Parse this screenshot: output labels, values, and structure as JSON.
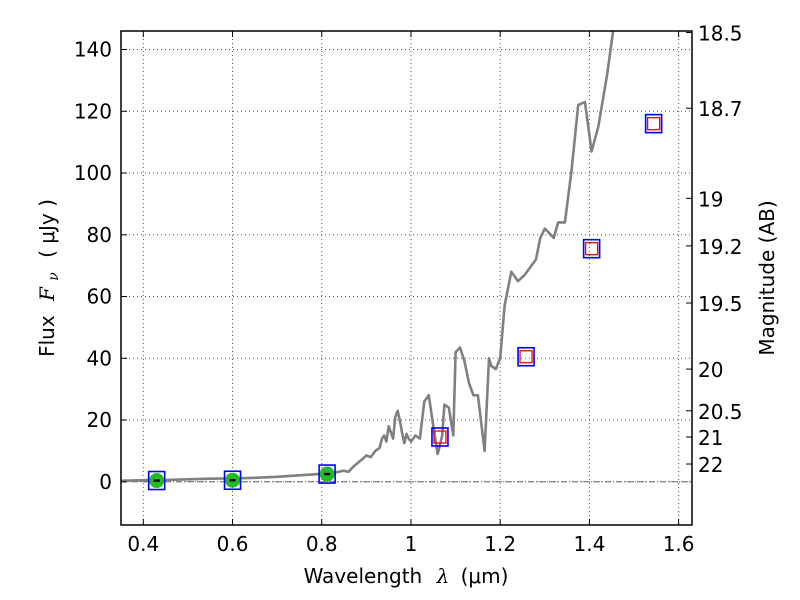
{
  "chart_data": {
    "type": "scatter",
    "xlabel_prefix": "Wavelength",
    "xlabel_symbol": "λ",
    "xlabel_unit": "(μm)",
    "ylabel_prefix": "Flux",
    "ylabel_symbol": "F",
    "ylabel_subscript": "ν",
    "ylabel_unit": "( μJy )",
    "y2label": "Magnitude (AB)",
    "xlim": [
      0.35,
      1.63
    ],
    "ylim": [
      -14,
      146
    ],
    "grid": true,
    "x_ticks": [
      0.4,
      0.6,
      0.8,
      1.0,
      1.2,
      1.4,
      1.6
    ],
    "x_tick_labels": [
      "0.4",
      "0.6",
      "0.8",
      "1",
      "1.2",
      "1.4",
      "1.6"
    ],
    "y_ticks": [
      0,
      20,
      40,
      60,
      80,
      100,
      120,
      140
    ],
    "y_tick_labels": [
      "0",
      "20",
      "40",
      "60",
      "80",
      "100",
      "120",
      "140"
    ],
    "mag_ticks": [
      {
        "label": "18.5",
        "flux": 145.5
      },
      {
        "label": "18.7",
        "flux": 121.0
      },
      {
        "label": "19",
        "flux": 91.8
      },
      {
        "label": "19.2",
        "flux": 76.4
      },
      {
        "label": "19.5",
        "flux": 57.9
      },
      {
        "label": "20",
        "flux": 36.5
      },
      {
        "label": "20.5",
        "flux": 23.0
      },
      {
        "label": "21",
        "flux": 14.5
      },
      {
        "label": "22",
        "flux": 5.75
      }
    ],
    "sed_model": {
      "name": "model spectrum",
      "color": "#808080",
      "points": [
        [
          0.35,
          0.3
        ],
        [
          0.4,
          0.5
        ],
        [
          0.45,
          0.6
        ],
        [
          0.5,
          0.8
        ],
        [
          0.55,
          1.0
        ],
        [
          0.6,
          1.1
        ],
        [
          0.65,
          1.3
        ],
        [
          0.7,
          1.6
        ],
        [
          0.75,
          2.1
        ],
        [
          0.78,
          2.4
        ],
        [
          0.8,
          2.6
        ],
        [
          0.83,
          3.0
        ],
        [
          0.85,
          3.6
        ],
        [
          0.86,
          3.2
        ],
        [
          0.87,
          4.8
        ],
        [
          0.88,
          6.0
        ],
        [
          0.89,
          7.2
        ],
        [
          0.9,
          8.5
        ],
        [
          0.91,
          8.0
        ],
        [
          0.92,
          10.0
        ],
        [
          0.93,
          11.0
        ],
        [
          0.935,
          14.0
        ],
        [
          0.94,
          15.0
        ],
        [
          0.945,
          13.0
        ],
        [
          0.95,
          18.0
        ],
        [
          0.955,
          16.0
        ],
        [
          0.96,
          14.0
        ],
        [
          0.965,
          21.0
        ],
        [
          0.97,
          23.0
        ],
        [
          0.975,
          20.0
        ],
        [
          0.98,
          16.0
        ],
        [
          0.985,
          12.5
        ],
        [
          0.99,
          15.5
        ],
        [
          0.995,
          14.0
        ],
        [
          1.0,
          13.0
        ],
        [
          1.01,
          15.0
        ],
        [
          1.02,
          14.0
        ],
        [
          1.03,
          26.0
        ],
        [
          1.04,
          28.0
        ],
        [
          1.05,
          18.0
        ],
        [
          1.06,
          9.0
        ],
        [
          1.07,
          15.0
        ],
        [
          1.075,
          25.0
        ],
        [
          1.085,
          24.0
        ],
        [
          1.095,
          15.0
        ],
        [
          1.1,
          42.0
        ],
        [
          1.11,
          43.5
        ],
        [
          1.12,
          39.0
        ],
        [
          1.13,
          32.0
        ],
        [
          1.14,
          28.0
        ],
        [
          1.15,
          28.0
        ],
        [
          1.165,
          10.0
        ],
        [
          1.175,
          40.0
        ],
        [
          1.18,
          37.5
        ],
        [
          1.19,
          36.5
        ],
        [
          1.2,
          40.0
        ],
        [
          1.21,
          57.0
        ],
        [
          1.225,
          68.0
        ],
        [
          1.24,
          65.0
        ],
        [
          1.255,
          67.0
        ],
        [
          1.27,
          70.0
        ],
        [
          1.28,
          72.0
        ],
        [
          1.29,
          79.0
        ],
        [
          1.3,
          82.0
        ],
        [
          1.31,
          80.5
        ],
        [
          1.32,
          79.0
        ],
        [
          1.33,
          84.0
        ],
        [
          1.345,
          84.0
        ],
        [
          1.36,
          101.0
        ],
        [
          1.375,
          122.0
        ],
        [
          1.39,
          123.0
        ],
        [
          1.405,
          107.0
        ],
        [
          1.42,
          115.0
        ],
        [
          1.44,
          132.0
        ],
        [
          1.455,
          148.0
        ]
      ]
    },
    "observed_points": [
      {
        "x": 0.43,
        "y": 0.4,
        "color": "#22bb22"
      },
      {
        "x": 0.6,
        "y": 0.5,
        "color": "#22bb22"
      },
      {
        "x": 0.812,
        "y": 2.5,
        "color": "#22bb22"
      }
    ],
    "model_squares": [
      {
        "x": 0.43,
        "y": 0.4
      },
      {
        "x": 0.6,
        "y": 0.5
      },
      {
        "x": 0.812,
        "y": 2.5
      },
      {
        "x": 1.065,
        "y": 14.5
      },
      {
        "x": 1.258,
        "y": 40.5
      },
      {
        "x": 1.405,
        "y": 75.5
      },
      {
        "x": 1.544,
        "y": 116.0
      }
    ],
    "upper_squares": [
      {
        "x": 1.065,
        "y": 14.5
      },
      {
        "x": 1.258,
        "y": 40.5
      },
      {
        "x": 1.405,
        "y": 75.5
      },
      {
        "x": 1.544,
        "y": 116.0
      }
    ],
    "colors": {
      "model_square": "#0000ff",
      "upper_square": "#ff0000",
      "zero_line": "#666666",
      "grid": "#555555"
    }
  }
}
